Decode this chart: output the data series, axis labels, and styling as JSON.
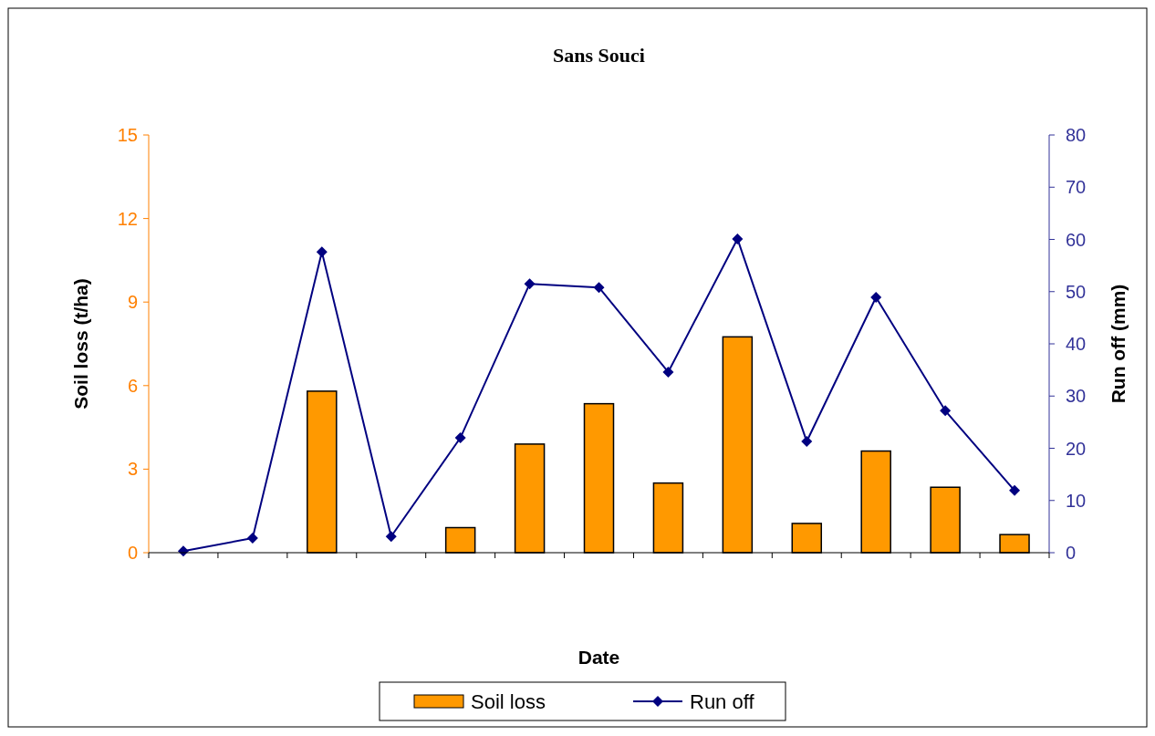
{
  "chart_data": {
    "type": "bar",
    "title": "Sans Souci",
    "xlabel": "Date",
    "ylabel": "Soil loss (t/ha)",
    "y2label": "Run off (mm)",
    "categories": [
      null,
      null,
      null,
      null,
      null,
      null,
      null,
      null,
      null,
      null,
      null,
      null,
      null
    ],
    "series": [
      {
        "name": "Soil loss",
        "color": "#ff9900",
        "values": [
          null,
          null,
          5.8,
          0,
          0.9,
          3.9,
          5.35,
          2.5,
          7.75,
          1.05,
          3.65,
          2.35,
          0.65
        ]
      },
      {
        "name": "Run off",
        "type": "line",
        "axis": "y2",
        "color": "#000080",
        "marker": "diamond",
        "values": [
          0.3,
          2.8,
          57.6,
          3.1,
          22,
          51.5,
          50.8,
          34.6,
          60.1,
          21.3,
          48.9,
          27.2,
          11.9
        ]
      }
    ],
    "ylim": [
      0,
      15
    ],
    "yticks": [
      0,
      3,
      6,
      9,
      12,
      15
    ],
    "y2lim": [
      0,
      80
    ],
    "y2ticks": [
      0,
      10,
      20,
      30,
      40,
      50,
      60,
      70,
      80
    ],
    "grid": false,
    "legend": "bottom"
  }
}
